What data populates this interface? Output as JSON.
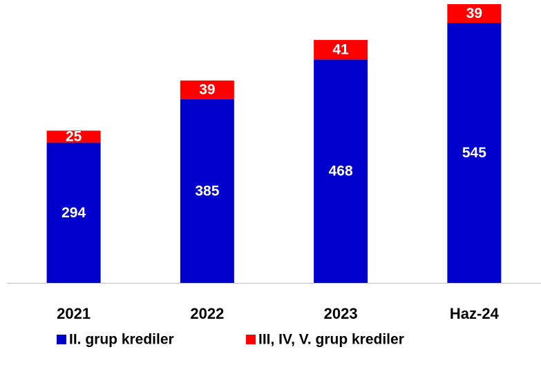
{
  "chart_data": {
    "type": "stacked_bar",
    "categories": [
      "2021",
      "2022",
      "2023",
      "Haz-24"
    ],
    "series": [
      {
        "name": "II. grup krediler",
        "color": "#0000cc",
        "values": [
          294,
          385,
          468,
          545
        ]
      },
      {
        "name": "III, IV, V. grup krediler",
        "color": "#ff0000",
        "values": [
          25,
          39,
          41,
          39
        ]
      }
    ],
    "legend": "bottom"
  }
}
